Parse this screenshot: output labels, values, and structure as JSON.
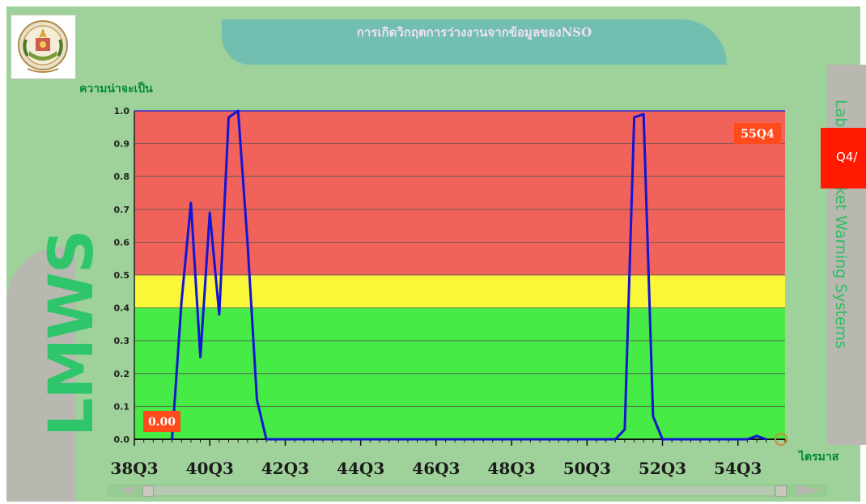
{
  "header": {
    "title": "การเกิดวิกฤตการว่างงานจากข้อมูลของNSO"
  },
  "side": {
    "left_text": "LMWS",
    "right_text": "Labour Market Warning Systems",
    "overlay_label": "Q4/"
  },
  "colors": {
    "high_zone": "#f0625a",
    "mid_zone": "#f9f738",
    "low_zone": "#46ec45",
    "line": "#1414d6",
    "label_box": "#ff4a1c"
  },
  "chart_data": {
    "type": "line",
    "ylabel": "ความน่าจะเป็น",
    "xlabel": "ไตรมาส",
    "ylim": [
      0,
      1.0
    ],
    "yticks": [
      "0.0",
      "0.1",
      "0.2",
      "0.3",
      "0.4",
      "0.5",
      "0.6",
      "0.7",
      "0.8",
      "0.9",
      "1.0"
    ],
    "xticks": [
      "38Q3",
      "40Q3",
      "42Q3",
      "44Q3",
      "46Q3",
      "48Q3",
      "50Q3",
      "52Q3",
      "54Q3"
    ],
    "zones": [
      {
        "from": 0.5,
        "to": 1.0,
        "color": "#f0625a"
      },
      {
        "from": 0.4,
        "to": 0.5,
        "color": "#f9f738"
      },
      {
        "from": 0.0,
        "to": 0.4,
        "color": "#46ec45"
      }
    ],
    "x_start": "38Q3",
    "x_end": "55Q4",
    "series": [
      {
        "values": [
          [
            "39Q3",
            0
          ],
          [
            "39Q4",
            0.42
          ],
          [
            "40Q1",
            0.72
          ],
          [
            "40Q2",
            0.25
          ],
          [
            "40Q3",
            0.69
          ],
          [
            "40Q4",
            0.38
          ],
          [
            "41Q1",
            0.98
          ],
          [
            "41Q2",
            1.0
          ],
          [
            "41Q3",
            0.6
          ],
          [
            "41Q4",
            0.12
          ],
          [
            "42Q1",
            0
          ],
          [
            "51Q2",
            0
          ],
          [
            "51Q3",
            0.03
          ],
          [
            "51Q4",
            0.98
          ],
          [
            "52Q1",
            0.99
          ],
          [
            "52Q2",
            0.07
          ],
          [
            "52Q3",
            0
          ],
          [
            "54Q4",
            0
          ],
          [
            "55Q1",
            0.01
          ],
          [
            "55Q2",
            0
          ]
        ]
      }
    ],
    "annotations": [
      {
        "text": "55Q4",
        "position": "top-right"
      },
      {
        "text": "0.00",
        "position": "bottom-left"
      }
    ]
  }
}
